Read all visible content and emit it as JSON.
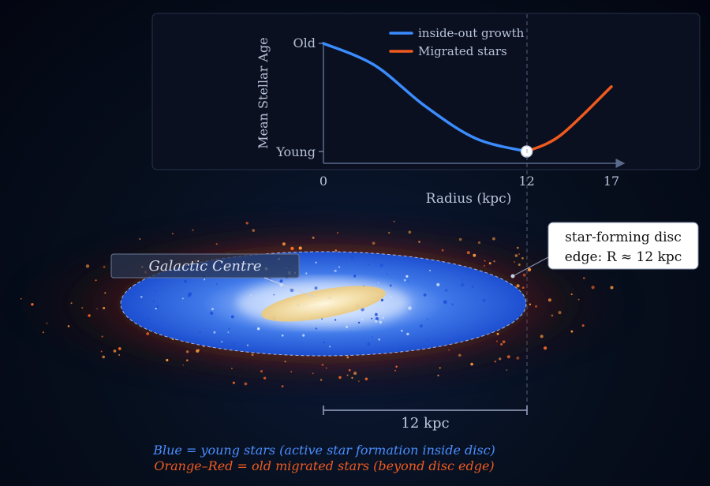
{
  "colors": {
    "young": "#3b8cff",
    "migrated": "#f05a1e",
    "axis": "#5a6a8c",
    "text": "#b8c2d8",
    "disc_core": "#f2d99a"
  },
  "chart_data": {
    "type": "line",
    "ylabel": "Mean Stellar Age",
    "xlabel": "Radius (kpc)",
    "x_ticks": [
      0,
      12,
      17
    ],
    "y_ticks": [
      "Old",
      "Young"
    ],
    "xlim": [
      0,
      17
    ],
    "ylim": [
      0,
      1
    ],
    "series": [
      {
        "name": "inside-out growth",
        "x": [
          0,
          3,
          6,
          9,
          12
        ],
        "y": [
          1.0,
          0.8,
          0.42,
          0.12,
          0.0
        ]
      },
      {
        "name": "Migrated stars",
        "x": [
          12,
          14,
          17
        ],
        "y": [
          0.0,
          0.15,
          0.6
        ]
      }
    ],
    "marker": {
      "x": 12,
      "y": 0.0
    }
  },
  "labels": {
    "galactic_centre": "Galactic Centre",
    "disc_edge_line1": "star-forming disc",
    "disc_edge_line2": "edge: R ≈ 12 kpc",
    "scale_bar": "12 kpc",
    "caption_blue": "Blue = young stars (active star formation inside disc)",
    "caption_orange": "Orange–Red = old migrated stars (beyond disc edge)"
  }
}
